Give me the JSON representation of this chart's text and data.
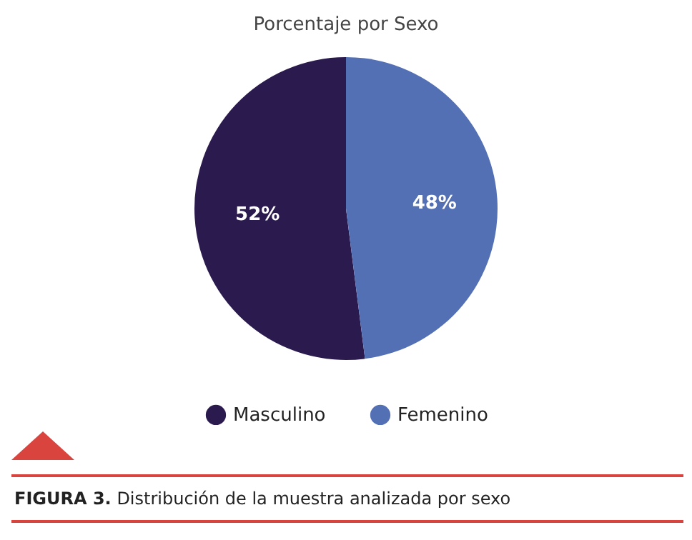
{
  "chart_data": {
    "type": "pie",
    "title": "Porcentaje por Sexo",
    "categories": [
      "Masculino",
      "Femenino"
    ],
    "values": [
      52,
      48
    ],
    "colors": [
      "#2b1a4e",
      "#5470b4"
    ],
    "value_labels": [
      "52%",
      "48%"
    ],
    "legend": "bottom",
    "annotations": [
      "FIGURA 3. Distribución de la muestra analizada por sexo"
    ]
  }
}
